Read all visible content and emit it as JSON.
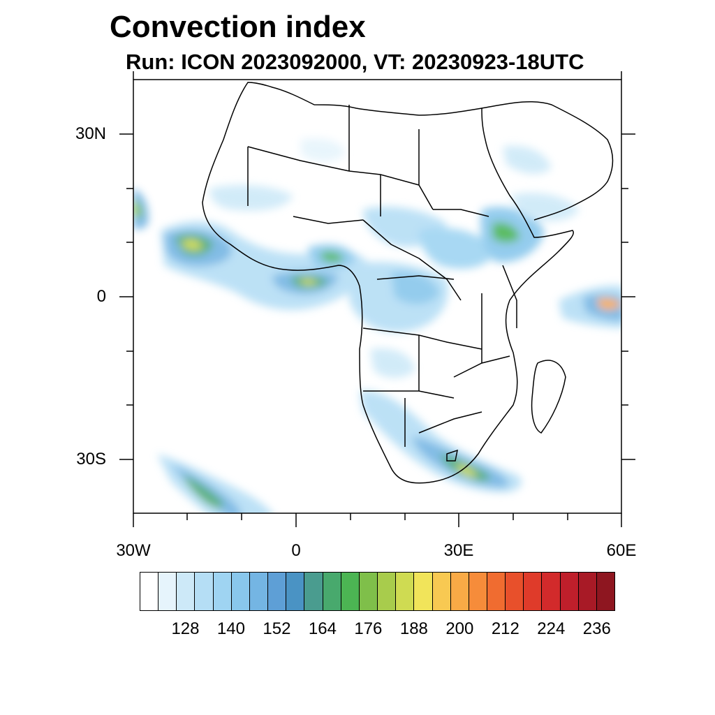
{
  "title": "Convection index",
  "subtitle": "Run: ICON 2023092000,  VT: 20230923-18UTC",
  "map": {
    "region": "Africa",
    "lat_ticks": [
      {
        "value": 30,
        "label": "30N"
      },
      {
        "value": 0,
        "label": "0"
      },
      {
        "value": -30,
        "label": "30S"
      }
    ],
    "lon_ticks": [
      {
        "value": -30,
        "label": "30W"
      },
      {
        "value": 0,
        "label": "0"
      },
      {
        "value": 30,
        "label": "30E"
      },
      {
        "value": 60,
        "label": "60E"
      }
    ],
    "lon_range": [
      -30,
      60
    ],
    "lat_range": [
      -40,
      40
    ]
  },
  "colorbar": {
    "colors": [
      "#ffffff",
      "#e6f4fc",
      "#cde9f8",
      "#b5def5",
      "#9fd4f2",
      "#89c7ec",
      "#74b5e3",
      "#5e9fd6",
      "#4a93c4",
      "#4a9c8f",
      "#48a96d",
      "#4cb553",
      "#7fbf4a",
      "#a8cc4c",
      "#cfdb52",
      "#f1e45a",
      "#f8c952",
      "#f9aa46",
      "#f68c3a",
      "#f06c30",
      "#e8502b",
      "#df3b2a",
      "#d22a2b",
      "#bf1f2b",
      "#a81a26",
      "#8e1620"
    ],
    "labels": [
      "128",
      "140",
      "152",
      "164",
      "176",
      "188",
      "200",
      "212",
      "224",
      "236"
    ]
  }
}
